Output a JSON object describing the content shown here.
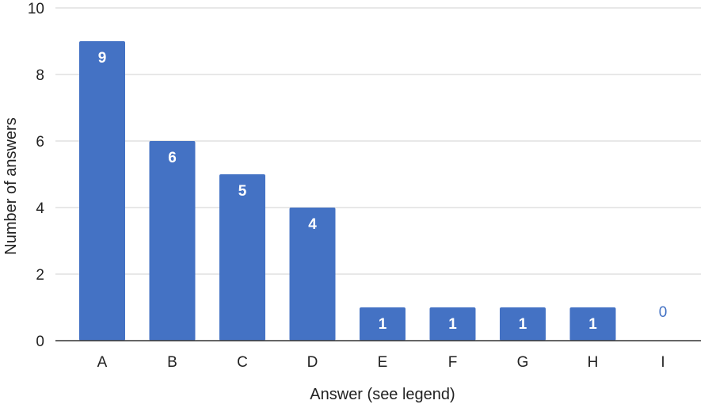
{
  "chart_data": {
    "type": "bar",
    "categories": [
      "A",
      "B",
      "C",
      "D",
      "E",
      "F",
      "G",
      "H",
      "I"
    ],
    "values": [
      9,
      6,
      5,
      4,
      1,
      1,
      1,
      1,
      0
    ],
    "data_labels": [
      "9",
      "6",
      "5",
      "4",
      "1",
      "1",
      "1",
      "1",
      "0"
    ],
    "xlabel": "Answer (see legend)",
    "ylabel": "Number of answers",
    "ylim": [
      0,
      10
    ],
    "yticks": [
      0,
      2,
      4,
      6,
      8,
      10
    ],
    "ytick_labels": [
      "0",
      "2",
      "4",
      "6",
      "8",
      "10"
    ],
    "grid": true,
    "bar_color": "#4472c4"
  }
}
